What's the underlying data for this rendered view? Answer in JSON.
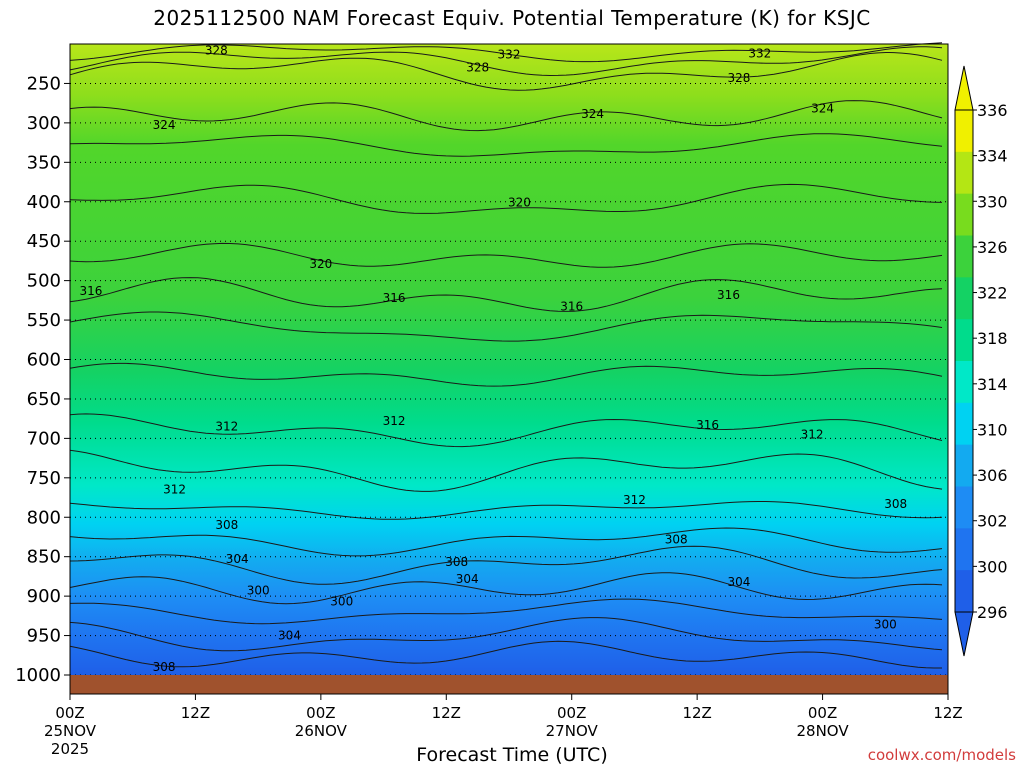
{
  "chart_data": {
    "type": "heatmap",
    "title": "2025112500 NAM Forecast Equiv. Potential Temperature (K) for KSJC",
    "xlabel": "Forecast Time (UTC)",
    "ylabel": "",
    "y_axis": "pressure (hPa), inverted",
    "y_ticks": [
      250,
      300,
      350,
      400,
      450,
      500,
      550,
      600,
      650,
      700,
      750,
      800,
      850,
      900,
      950,
      1000
    ],
    "ylim": [
      1000,
      200
    ],
    "x_ticks": [
      {
        "label": "00Z",
        "sub": "25NOV",
        "sub2": "2025",
        "hour": 0
      },
      {
        "label": "12Z",
        "sub": "",
        "sub2": "",
        "hour": 12
      },
      {
        "label": "00Z",
        "sub": "26NOV",
        "sub2": "",
        "hour": 24
      },
      {
        "label": "12Z",
        "sub": "",
        "sub2": "",
        "hour": 36
      },
      {
        "label": "00Z",
        "sub": "27NOV",
        "sub2": "",
        "hour": 48
      },
      {
        "label": "12Z",
        "sub": "",
        "sub2": "",
        "hour": 60
      },
      {
        "label": "00Z",
        "sub": "28NOV",
        "sub2": "",
        "hour": 72
      },
      {
        "label": "12Z",
        "sub": "",
        "sub2": "",
        "hour": 84
      }
    ],
    "xlim": [
      0,
      84
    ],
    "grid": "dotted horizontal at pressure levels",
    "colorbar": {
      "placement": "right",
      "labels": [
        336,
        334,
        330,
        326,
        322,
        318,
        314,
        310,
        306,
        302,
        300,
        296
      ],
      "levels": [
        {
          "value": 296,
          "color": "#1f5fe8"
        },
        {
          "value": 300,
          "color": "#1f74f0"
        },
        {
          "value": 302,
          "color": "#1e8cf4"
        },
        {
          "value": 306,
          "color": "#13aaf0"
        },
        {
          "value": 310,
          "color": "#00d2f2"
        },
        {
          "value": 314,
          "color": "#00e8c8"
        },
        {
          "value": 318,
          "color": "#00dc8c"
        },
        {
          "value": 322,
          "color": "#14d264"
        },
        {
          "value": 326,
          "color": "#3cd23c"
        },
        {
          "value": 330,
          "color": "#78dc1e"
        },
        {
          "value": 334,
          "color": "#b4e614"
        },
        {
          "value": 336,
          "color": "#f0f000"
        }
      ]
    },
    "contour_labels": [
      {
        "text": "328",
        "hour": 14,
        "p": 208
      },
      {
        "text": "332",
        "hour": 42,
        "p": 213
      },
      {
        "text": "332",
        "hour": 66,
        "p": 212
      },
      {
        "text": "328",
        "hour": 39,
        "p": 230
      },
      {
        "text": "328",
        "hour": 64,
        "p": 243
      },
      {
        "text": "324",
        "hour": 9,
        "p": 303
      },
      {
        "text": "324",
        "hour": 50,
        "p": 289
      },
      {
        "text": "324",
        "hour": 72,
        "p": 282
      },
      {
        "text": "320",
        "hour": 43,
        "p": 401
      },
      {
        "text": "320",
        "hour": 24,
        "p": 479
      },
      {
        "text": "316",
        "hour": 2,
        "p": 513
      },
      {
        "text": "316",
        "hour": 31,
        "p": 522
      },
      {
        "text": "316",
        "hour": 48,
        "p": 533
      },
      {
        "text": "316",
        "hour": 63,
        "p": 518
      },
      {
        "text": "316",
        "hour": 61,
        "p": 683
      },
      {
        "text": "312",
        "hour": 15,
        "p": 685
      },
      {
        "text": "312",
        "hour": 31,
        "p": 678
      },
      {
        "text": "312",
        "hour": 71,
        "p": 695
      },
      {
        "text": "312",
        "hour": 10,
        "p": 765
      },
      {
        "text": "312",
        "hour": 54,
        "p": 778
      },
      {
        "text": "308",
        "hour": 15,
        "p": 810
      },
      {
        "text": "308",
        "hour": 58,
        "p": 828
      },
      {
        "text": "308",
        "hour": 79,
        "p": 783
      },
      {
        "text": "308",
        "hour": 37,
        "p": 857
      },
      {
        "text": "308",
        "hour": 9,
        "p": 990
      },
      {
        "text": "304",
        "hour": 16,
        "p": 853
      },
      {
        "text": "304",
        "hour": 38,
        "p": 878
      },
      {
        "text": "304",
        "hour": 64,
        "p": 882
      },
      {
        "text": "304",
        "hour": 21,
        "p": 950
      },
      {
        "text": "300",
        "hour": 18,
        "p": 893
      },
      {
        "text": "300",
        "hour": 26,
        "p": 907
      },
      {
        "text": "300",
        "hour": 78,
        "p": 936
      }
    ],
    "ground_color": "#a0522d"
  },
  "footer": {
    "credit": "coolwx.com/models"
  }
}
